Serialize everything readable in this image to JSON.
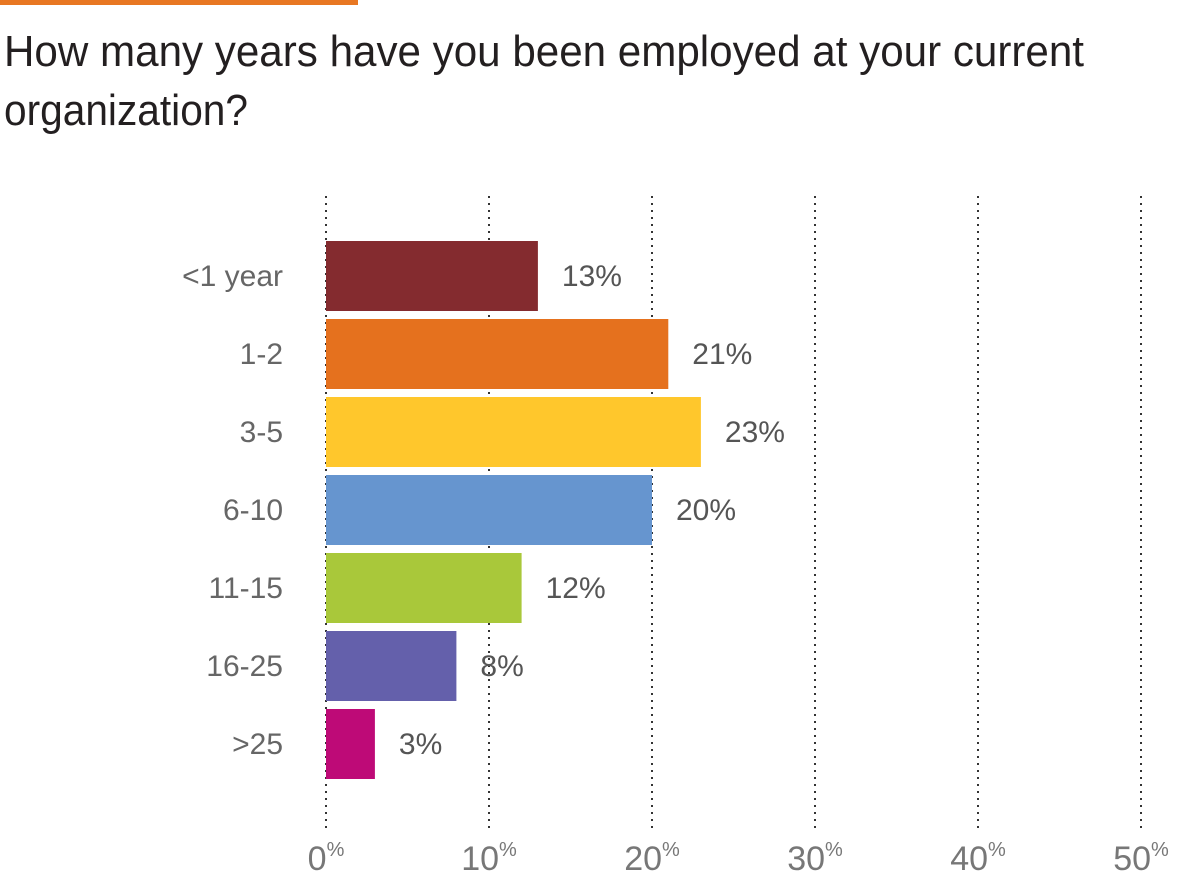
{
  "accent_color": "#e87722",
  "chart_data": {
    "type": "bar",
    "orientation": "horizontal",
    "title_lines": [
      "How many years have you been employed at your current",
      "organization?"
    ],
    "categories": [
      "<1 year",
      "1-2",
      "3-5",
      "6-10",
      "11-15",
      "16-25",
      ">25"
    ],
    "values": [
      13,
      21,
      23,
      20,
      12,
      8,
      3
    ],
    "value_labels": [
      "13%",
      "21%",
      "23%",
      "20%",
      "12%",
      "8%",
      "3%"
    ],
    "colors": [
      "#842b2f",
      "#e5711e",
      "#ffc72c",
      "#6695cf",
      "#a9c83a",
      "#6460ab",
      "#be0a77"
    ],
    "xlim": [
      0,
      50
    ],
    "x_ticks": [
      0,
      10,
      20,
      30,
      40,
      50
    ],
    "x_tick_labels": [
      "0",
      "10",
      "20",
      "30",
      "40",
      "50"
    ],
    "x_tick_suffix": "%",
    "grid": "vertical-dotted",
    "legend": "none"
  }
}
